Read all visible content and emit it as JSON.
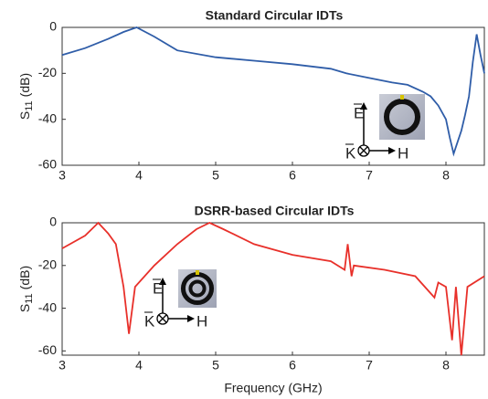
{
  "chart_data": [
    {
      "type": "line",
      "title": "Standard Circular IDTs",
      "ylabel": {
        "main": "S",
        "sub": "11",
        "unit": "(dB)"
      },
      "x": [
        3,
        3.3,
        3.6,
        3.8,
        3.97,
        4.2,
        4.5,
        5,
        5.5,
        6,
        6.5,
        6.7,
        7,
        7.3,
        7.5,
        7.7,
        7.8,
        7.9,
        8.0,
        8.05,
        8.1,
        8.15,
        8.2,
        8.25,
        8.3,
        8.35,
        8.4,
        8.45,
        8.5
      ],
      "values": [
        -12,
        -9,
        -5,
        -2,
        0,
        -4,
        -10,
        -13,
        -14.5,
        -16,
        -18,
        -20,
        -22,
        -24,
        -25,
        -28,
        -30,
        -34,
        -40,
        -48,
        -55,
        -50,
        -45,
        -38,
        -30,
        -15,
        -3,
        -12,
        -20
      ],
      "color": "#2f5da8",
      "xlim": [
        3,
        8.5
      ],
      "ylim": [
        -60,
        0
      ],
      "xticks": [
        3,
        4,
        5,
        6,
        7,
        8
      ],
      "yticks": [
        0,
        -20,
        -40,
        -60
      ],
      "inset_labels": {
        "e": "E",
        "k": "K",
        "h": "H"
      }
    },
    {
      "type": "line",
      "title": "DSRR-based Circular IDTs",
      "ylabel": {
        "main": "S",
        "sub": "11",
        "unit": "(dB)"
      },
      "xlabel": "Frequency (GHz)",
      "x": [
        3,
        3.3,
        3.47,
        3.6,
        3.7,
        3.8,
        3.87,
        3.95,
        4.2,
        4.5,
        4.75,
        4.92,
        5.1,
        5.5,
        6,
        6.5,
        6.68,
        6.72,
        6.77,
        6.8,
        7.2,
        7.6,
        7.85,
        7.9,
        8.0,
        8.08,
        8.13,
        8.2,
        8.28,
        8.5
      ],
      "values": [
        -12,
        -6,
        0,
        -5,
        -10,
        -30,
        -52,
        -30,
        -20,
        -10,
        -3,
        0,
        -3,
        -10,
        -15,
        -18,
        -22,
        -10,
        -25,
        -20,
        -22,
        -25,
        -35,
        -28,
        -30,
        -55,
        -30,
        -62,
        -30,
        -25
      ],
      "color": "#e8302a",
      "xlim": [
        3,
        8.5
      ],
      "ylim": [
        -62,
        0
      ],
      "xticks": [
        3,
        4,
        5,
        6,
        7,
        8
      ],
      "yticks": [
        0,
        -20,
        -40,
        -60
      ],
      "inset_labels": {
        "e": "E",
        "k": "K",
        "h": "H"
      }
    }
  ]
}
